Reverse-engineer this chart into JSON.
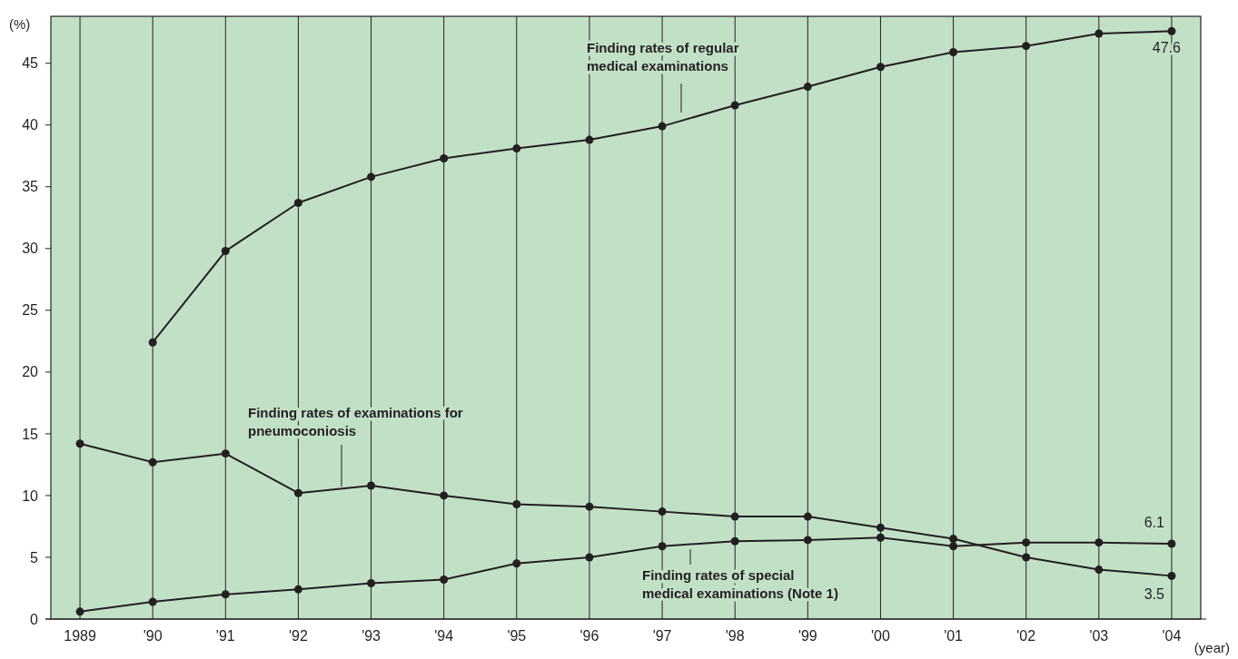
{
  "chart_data": {
    "type": "line",
    "xlabel": "(year)",
    "ylabel": "(%)",
    "categories": [
      "1989",
      "'90",
      "'91",
      "'92",
      "'93",
      "'94",
      "'95",
      "'96",
      "'97",
      "'98",
      "'99",
      "'00",
      "'01",
      "'02",
      "'03",
      "'04"
    ],
    "ylim": [
      0,
      48.8
    ],
    "yticks": [
      0,
      5,
      10,
      15,
      20,
      25,
      30,
      35,
      40,
      45
    ],
    "grid": "x",
    "marker": "circle",
    "line_style": "solid",
    "series": [
      {
        "name": "Finding rates of regular medical examinations",
        "color": "#231f20",
        "values": [
          null,
          22.4,
          29.8,
          33.7,
          35.8,
          37.3,
          38.1,
          38.8,
          39.9,
          41.6,
          43.1,
          44.7,
          45.9,
          46.4,
          47.4,
          47.6
        ],
        "value_labels": [
          null,
          null,
          null,
          null,
          null,
          null,
          null,
          null,
          null,
          null,
          null,
          null,
          null,
          null,
          null,
          "47.6"
        ]
      },
      {
        "name": "Finding rates of examinations for pneumoconiosis",
        "color": "#231f20",
        "values": [
          14.2,
          12.7,
          13.4,
          10.2,
          10.8,
          10.0,
          9.3,
          9.1,
          8.7,
          8.3,
          8.3,
          7.4,
          6.5,
          5.0,
          4.0,
          3.5
        ],
        "value_labels": [
          null,
          null,
          null,
          null,
          null,
          null,
          null,
          null,
          null,
          null,
          null,
          null,
          null,
          null,
          null,
          "3.5"
        ]
      },
      {
        "name": "Finding rates of special medical examinations (Note 1)",
        "color": "#231f20",
        "values": [
          0.6,
          1.4,
          2.0,
          2.4,
          2.9,
          3.2,
          4.5,
          5.0,
          5.9,
          6.3,
          6.4,
          6.6,
          5.9,
          6.2,
          6.2,
          6.1
        ],
        "value_labels": [
          null,
          null,
          null,
          null,
          null,
          null,
          null,
          null,
          null,
          null,
          null,
          null,
          null,
          null,
          null,
          "6.1"
        ]
      }
    ]
  }
}
